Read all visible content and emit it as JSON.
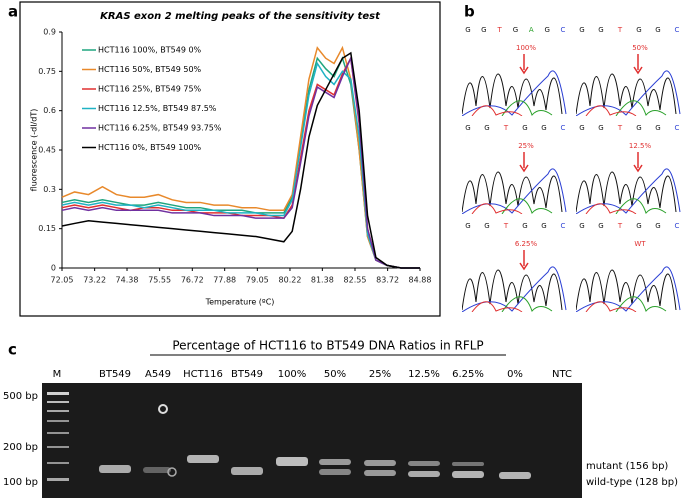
{
  "chart_data": {
    "type": "line",
    "panel": "a",
    "title": "KRAS exon 2 melting peaks of the sensitivity test",
    "xlabel": "Temperature (ºC)",
    "ylabel": "fluorescence (-dI/dT)",
    "xlim": [
      72.05,
      84.88
    ],
    "xticks": [
      72.05,
      73.22,
      74.38,
      75.55,
      76.72,
      77.88,
      79.05,
      80.22,
      81.38,
      82.55,
      83.72,
      84.88
    ],
    "ylim": [
      0,
      0.9
    ],
    "yticks": [
      0,
      0.15,
      0.3,
      0.45,
      0.6,
      0.75,
      0.9
    ],
    "legend": "upper left",
    "x": [
      72.05,
      72.5,
      73,
      73.5,
      74,
      74.5,
      75,
      75.5,
      76,
      76.5,
      77,
      77.5,
      78,
      78.5,
      79,
      79.5,
      80,
      80.3,
      80.6,
      80.9,
      81.2,
      81.5,
      81.8,
      82.1,
      82.4,
      82.7,
      83,
      83.3,
      83.7,
      84.2,
      84.88
    ],
    "series": [
      {
        "name": "HCT116 100%, BT549 0%",
        "color": "#1fa57f",
        "values": [
          0.25,
          0.26,
          0.25,
          0.26,
          0.25,
          0.24,
          0.24,
          0.25,
          0.24,
          0.23,
          0.23,
          0.22,
          0.22,
          0.22,
          0.21,
          0.21,
          0.21,
          0.27,
          0.48,
          0.68,
          0.8,
          0.76,
          0.73,
          0.8,
          0.7,
          0.45,
          0.12,
          0.03,
          0.01,
          0,
          0
        ]
      },
      {
        "name": "HCT116 50%, BT549 50%",
        "color": "#e8892b",
        "values": [
          0.27,
          0.29,
          0.28,
          0.31,
          0.28,
          0.27,
          0.27,
          0.28,
          0.26,
          0.25,
          0.25,
          0.24,
          0.24,
          0.23,
          0.23,
          0.22,
          0.22,
          0.28,
          0.5,
          0.72,
          0.84,
          0.8,
          0.78,
          0.84,
          0.72,
          0.45,
          0.12,
          0.03,
          0.01,
          0,
          0
        ]
      },
      {
        "name": "HCT116 25%, BT549 75%",
        "color": "#e03030",
        "values": [
          0.23,
          0.24,
          0.23,
          0.24,
          0.23,
          0.22,
          0.23,
          0.23,
          0.22,
          0.22,
          0.21,
          0.21,
          0.21,
          0.2,
          0.2,
          0.2,
          0.19,
          0.24,
          0.42,
          0.6,
          0.7,
          0.68,
          0.66,
          0.74,
          0.8,
          0.55,
          0.15,
          0.03,
          0.01,
          0,
          0
        ]
      },
      {
        "name": "HCT116 12.5%, BT549 87.5%",
        "color": "#1fb2c4",
        "values": [
          0.24,
          0.25,
          0.24,
          0.25,
          0.24,
          0.24,
          0.23,
          0.24,
          0.23,
          0.22,
          0.22,
          0.22,
          0.21,
          0.21,
          0.21,
          0.2,
          0.2,
          0.26,
          0.46,
          0.66,
          0.78,
          0.73,
          0.7,
          0.75,
          0.72,
          0.5,
          0.13,
          0.03,
          0.01,
          0,
          0
        ]
      },
      {
        "name": "HCT116 6.25%, BT549 93.75%",
        "color": "#7030a0",
        "values": [
          0.22,
          0.23,
          0.22,
          0.23,
          0.22,
          0.22,
          0.22,
          0.22,
          0.21,
          0.21,
          0.21,
          0.2,
          0.2,
          0.2,
          0.19,
          0.19,
          0.19,
          0.23,
          0.4,
          0.58,
          0.69,
          0.67,
          0.65,
          0.73,
          0.8,
          0.56,
          0.15,
          0.03,
          0.01,
          0,
          0
        ]
      },
      {
        "name": "HCT116 0%, BT549 100%",
        "color": "#000000",
        "values": [
          0.16,
          0.17,
          0.18,
          0.175,
          0.17,
          0.165,
          0.16,
          0.155,
          0.15,
          0.145,
          0.14,
          0.135,
          0.13,
          0.125,
          0.12,
          0.11,
          0.1,
          0.14,
          0.3,
          0.5,
          0.62,
          0.68,
          0.74,
          0.8,
          0.82,
          0.6,
          0.2,
          0.04,
          0.01,
          0,
          0
        ]
      }
    ]
  },
  "panel_b": {
    "label": "b",
    "traces": [
      {
        "bases": [
          "G",
          "G",
          "T",
          "G",
          "A",
          "G",
          "C"
        ],
        "annotation": "100%"
      },
      {
        "bases": [
          "G",
          "G",
          "T",
          "G",
          "G",
          "C"
        ],
        "annotation": "50%"
      },
      {
        "bases": [
          "G",
          "G",
          "T",
          "G",
          "G",
          "C"
        ],
        "annotation": "25%"
      },
      {
        "bases": [
          "G",
          "G",
          "T",
          "G",
          "G",
          "C"
        ],
        "annotation": "12.5%"
      },
      {
        "bases": [
          "G",
          "G",
          "T",
          "G",
          "G",
          "C"
        ],
        "annotation": "6.25%"
      },
      {
        "bases": [
          "G",
          "G",
          "T",
          "G",
          "G",
          "C"
        ],
        "annotation": "WT"
      }
    ]
  },
  "panel_c": {
    "label": "c",
    "title": "Percentage of HCT116 to BT549 DNA Ratios in RFLP",
    "lanes": [
      "M",
      "BT549",
      "A549",
      "HCT116",
      "BT549",
      "100%",
      "50%",
      "25%",
      "12.5%",
      "6.25%",
      "0%",
      "NTC"
    ],
    "sizes": [
      "500 bp",
      "200 bp",
      "100 bp"
    ],
    "bands": [
      "mutant (156 bp)",
      "wild-type (128 bp)"
    ]
  }
}
